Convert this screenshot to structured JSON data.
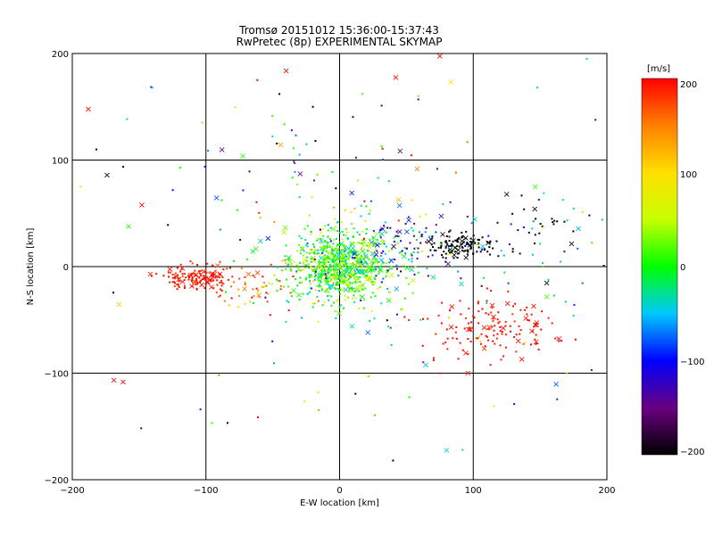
{
  "chart_data": {
    "type": "scatter",
    "title": "Tromsø 20151012 15:36:00-15:37:43",
    "subtitle": "RwPretec (8p) EXPERIMENTAL SKYMAP",
    "xlabel": "E-W location [km]",
    "ylabel": "N-S location [km]",
    "xlim": [
      -200,
      200
    ],
    "ylim": [
      -200,
      200
    ],
    "xticks": [
      -200,
      -100,
      0,
      100,
      200
    ],
    "yticks": [
      -200,
      -100,
      0,
      100,
      200
    ],
    "xtick_labels": [
      "−200",
      "−100",
      "0",
      "100",
      "200"
    ],
    "ytick_labels": [
      "−200",
      "−100",
      "0",
      "100",
      "200"
    ],
    "grid": true,
    "colorbar": {
      "label": "[m/s]",
      "range": [
        -200,
        200
      ],
      "ticks": [
        200,
        100,
        0,
        -100,
        -200
      ],
      "tick_labels": [
        "200",
        "100",
        "0",
        "−100",
        "−200"
      ],
      "colors": [
        "#000000",
        "#6a0080",
        "#0000ff",
        "#00c8ff",
        "#00ff00",
        "#c8ff00",
        "#ffe000",
        "#ff8000",
        "#ff0000"
      ]
    },
    "markers": {
      "dot": "·",
      "cross": "×"
    },
    "clusters": [
      {
        "name": "center",
        "cx": 0,
        "cy": 0,
        "sx": 18,
        "sy": 15,
        "n": 700,
        "v_mean": 10,
        "v_sd": 35
      },
      {
        "name": "center-ring",
        "cx": 5,
        "cy": 5,
        "sx": 30,
        "sy": 25,
        "n": 200,
        "v_mean": 0,
        "v_sd": 60
      },
      {
        "name": "west-red",
        "cx": -105,
        "cy": -10,
        "sx": 14,
        "sy": 6,
        "n": 150,
        "v_mean": 190,
        "v_sd": 10
      },
      {
        "name": "west-mid",
        "cx": -65,
        "cy": -20,
        "sx": 18,
        "sy": 15,
        "n": 50,
        "v_mean": 170,
        "v_sd": 40
      },
      {
        "name": "se-red",
        "cx": 115,
        "cy": -60,
        "sx": 25,
        "sy": 15,
        "n": 150,
        "v_mean": 195,
        "v_sd": 8
      },
      {
        "name": "ne-black",
        "cx": 90,
        "cy": 20,
        "sx": 12,
        "sy": 6,
        "n": 120,
        "v_mean": -200,
        "v_sd": 5
      },
      {
        "name": "ne-blue",
        "cx": 55,
        "cy": 20,
        "sx": 20,
        "sy": 15,
        "n": 80,
        "v_mean": -110,
        "v_sd": 50
      },
      {
        "name": "east-black",
        "cx": 150,
        "cy": 35,
        "sx": 15,
        "sy": 15,
        "n": 25,
        "v_mean": -195,
        "v_sd": 10
      },
      {
        "name": "east-cyan",
        "cx": 150,
        "cy": 10,
        "sx": 25,
        "sy": 30,
        "n": 30,
        "v_mean": -40,
        "v_sd": 40
      },
      {
        "name": "north-scatter",
        "cx": 0,
        "cy": 80,
        "sx": 70,
        "sy": 40,
        "n": 60,
        "v_mean": 0,
        "v_sd": 120
      },
      {
        "name": "sparse",
        "cx": 0,
        "cy": 0,
        "sx": 110,
        "sy": 90,
        "n": 100,
        "v_mean": 0,
        "v_sd": 120
      }
    ],
    "outliers": [
      {
        "x": -188,
        "y": 148,
        "v": 200,
        "m": "cross"
      },
      {
        "x": -40,
        "y": 184,
        "v": 200,
        "m": "cross"
      },
      {
        "x": 42,
        "y": 178,
        "v": 200,
        "m": "cross"
      },
      {
        "x": 75,
        "y": 198,
        "v": 200,
        "m": "cross"
      },
      {
        "x": -174,
        "y": 86,
        "v": -200,
        "m": "cross"
      },
      {
        "x": -88,
        "y": 110,
        "v": -150,
        "m": "cross"
      },
      {
        "x": -162,
        "y": -108,
        "v": 200,
        "m": "cross"
      },
      {
        "x": -165,
        "y": -35,
        "v": 110,
        "m": "cross"
      },
      {
        "x": 80,
        "y": -172,
        "v": -40,
        "m": "cross"
      },
      {
        "x": 92,
        "y": -172,
        "v": -40,
        "m": "dot"
      },
      {
        "x": 40,
        "y": -182,
        "v": -200,
        "m": "dot"
      },
      {
        "x": 148,
        "y": 168,
        "v": -40,
        "m": "dot"
      },
      {
        "x": 185,
        "y": 195,
        "v": -40,
        "m": "dot"
      },
      {
        "x": -140,
        "y": 168,
        "v": -40,
        "m": "dot"
      },
      {
        "x": -45,
        "y": 162,
        "v": -200,
        "m": "dot"
      },
      {
        "x": -18,
        "y": 118,
        "v": -200,
        "m": "dot"
      },
      {
        "x": -30,
        "y": 105,
        "v": -60,
        "m": "dot"
      },
      {
        "x": 58,
        "y": 92,
        "v": 150,
        "m": "cross"
      },
      {
        "x": -158,
        "y": 38,
        "v": 10,
        "m": "cross"
      },
      {
        "x": -148,
        "y": 58,
        "v": 200,
        "m": "cross"
      },
      {
        "x": -92,
        "y": 65,
        "v": -80,
        "m": "cross"
      },
      {
        "x": 125,
        "y": 68,
        "v": -200,
        "m": "cross"
      },
      {
        "x": 155,
        "y": -28,
        "v": 20,
        "m": "cross"
      },
      {
        "x": 155,
        "y": -15,
        "v": -200,
        "m": "cross"
      },
      {
        "x": 170,
        "y": -100,
        "v": 120,
        "m": "dot"
      },
      {
        "x": -182,
        "y": 110,
        "v": -200,
        "m": "dot"
      },
      {
        "x": -20,
        "y": 150,
        "v": -200,
        "m": "dot"
      }
    ]
  }
}
